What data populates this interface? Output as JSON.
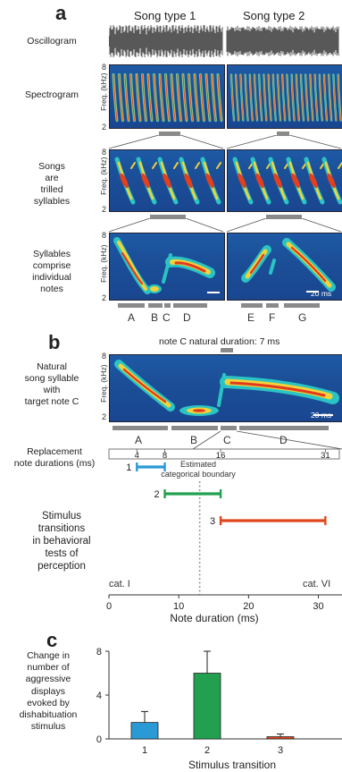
{
  "panel_a": {
    "label": "a",
    "song_type_1": "Song type 1",
    "song_type_2": "Song type 2",
    "row_oscillogram": "Oscillogram",
    "row_spectrogram": "Spectrogram",
    "row_songs": [
      "Songs",
      "are",
      "trilled",
      "syllables"
    ],
    "row_syllables": [
      "Syllables",
      "comprise",
      "individual",
      "notes"
    ],
    "freq_label": "Freq.",
    "freq_unit": "(kHz)",
    "y_top": "8",
    "y_bottom": "2",
    "scale_bar": "20 ms",
    "notes_type1": [
      "A",
      "B",
      "C",
      "D"
    ],
    "notes_type2": [
      "E",
      "F",
      "G"
    ]
  },
  "panel_b": {
    "label": "b",
    "natural_duration": "note C natural duration: 7 ms",
    "row_label": [
      "Natural",
      "song syllable",
      "with",
      "target note C"
    ],
    "freq_label": "Freq.",
    "freq_unit": "(kHz)",
    "y_top": "8",
    "y_bottom": "2",
    "scale_bar": "20 ms",
    "notes": [
      "A",
      "B",
      "C",
      "D"
    ],
    "replacement_label": [
      "Replacement",
      "note durations (ms)"
    ],
    "replacement_ticks": [
      "4",
      "8",
      "16",
      "31"
    ],
    "boundary_label": [
      "Estimated",
      "categorical boundary"
    ],
    "transitions_label": [
      "Stimulus",
      "transitions",
      "in behavioral",
      "tests of",
      "perception"
    ],
    "cat_left": "cat. I",
    "cat_right": "cat. VI",
    "colors": {
      "t1": "#2a9ad6",
      "t2": "#22a050",
      "t3": "#e0461e"
    },
    "chart_data": {
      "type": "range",
      "xlabel": "Note duration (ms)",
      "xlim": [
        0,
        33
      ],
      "xticks": [
        "0",
        "10",
        "20",
        "30"
      ],
      "boundary": 13,
      "transitions": [
        {
          "name": "1",
          "start": 4,
          "end": 8
        },
        {
          "name": "2",
          "start": 8,
          "end": 16
        },
        {
          "name": "3",
          "start": 16,
          "end": 31
        }
      ]
    }
  },
  "panel_c": {
    "label": "c",
    "ylabel": [
      "Change in",
      "number of",
      "aggressive",
      "displays",
      "evoked by",
      "dishabituation",
      "stimulus"
    ],
    "significance": "*",
    "chart_data": {
      "type": "bar",
      "categories": [
        "1",
        "2",
        "3"
      ],
      "values": [
        1.5,
        6.0,
        0.2
      ],
      "errors": [
        1.0,
        2.0,
        0.25
      ],
      "colors": [
        "#2a9ad6",
        "#22a050",
        "#e0461e"
      ],
      "xlabel": "Stimulus transition",
      "ylim": [
        0,
        8
      ],
      "yticks": [
        "0",
        "4",
        "8"
      ]
    }
  }
}
